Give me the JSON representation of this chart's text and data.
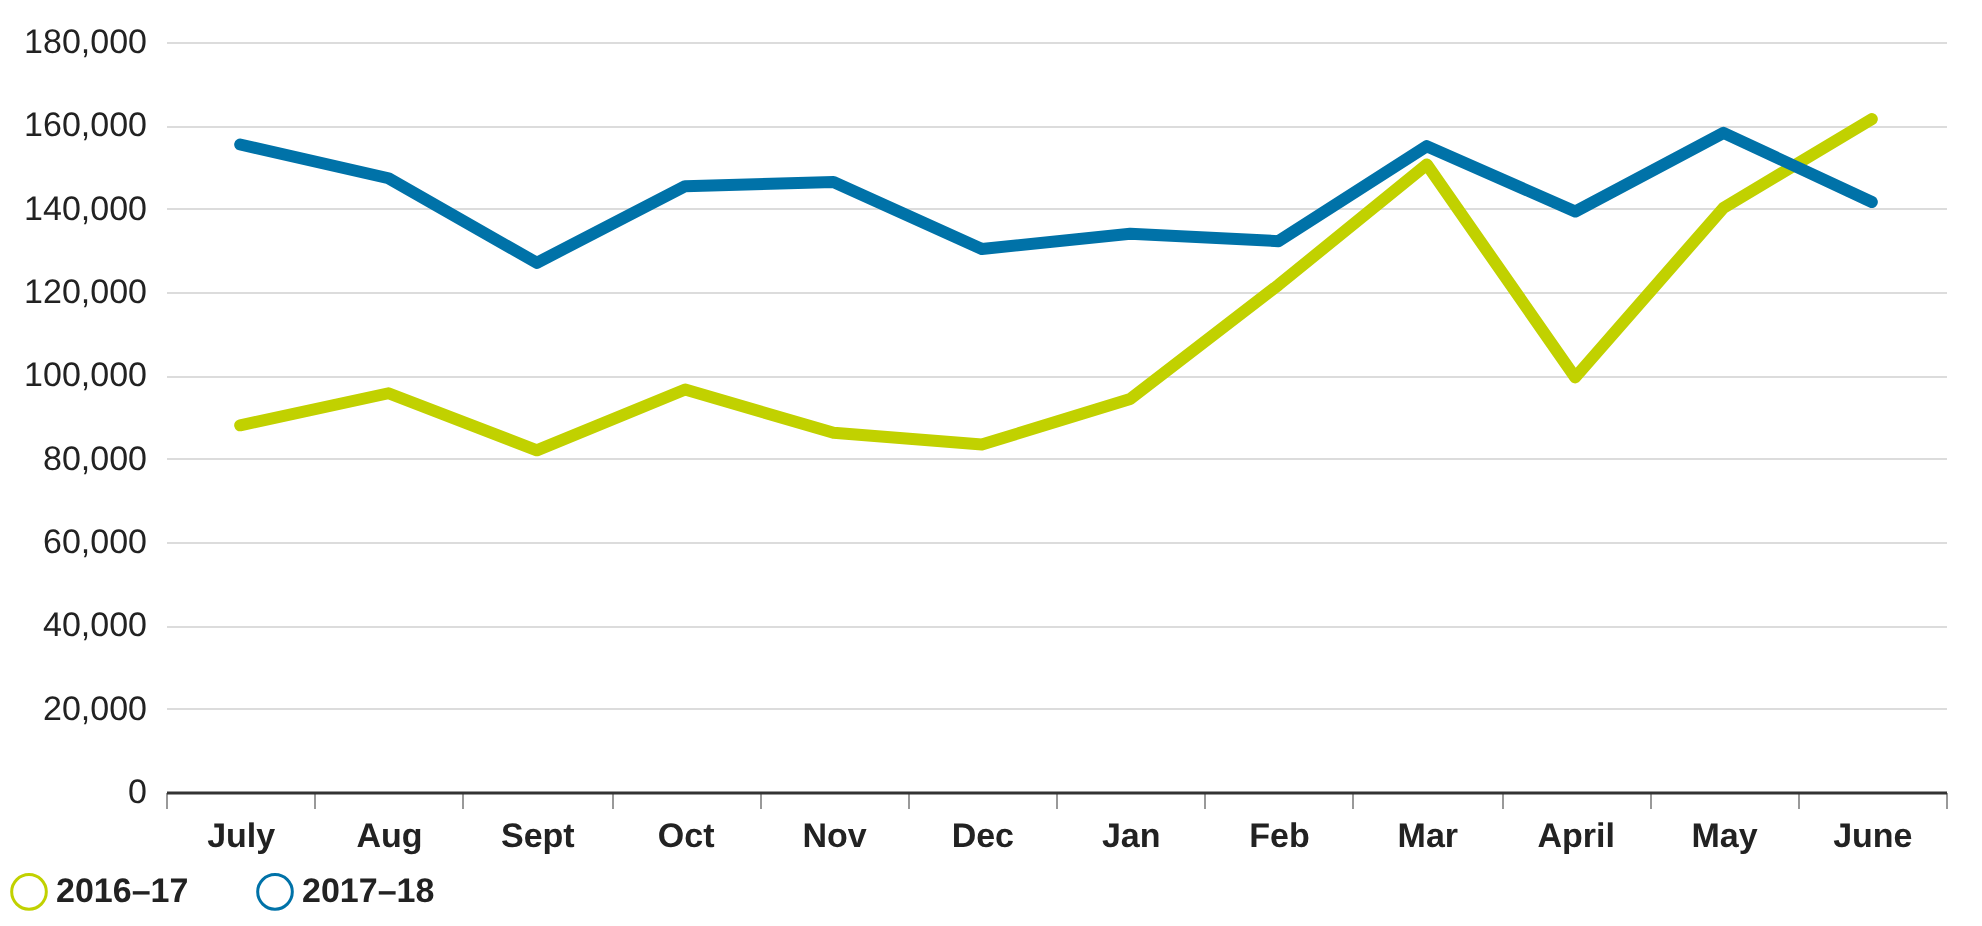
{
  "chart_data": {
    "type": "line",
    "categories": [
      "July",
      "Aug",
      "Sept",
      "Oct",
      "Nov",
      "Dec",
      "Jan",
      "Feb",
      "Mar",
      "April",
      "May",
      "June"
    ],
    "series": [
      {
        "name": "2016–17",
        "color": "#c1d100",
        "values": [
          88000,
          95700,
          82000,
          96600,
          86200,
          83400,
          94300,
          121700,
          150600,
          99500,
          140200,
          161500
        ]
      },
      {
        "name": "2017–18",
        "color": "#0072a8",
        "values": [
          155400,
          147300,
          127000,
          145400,
          146400,
          130300,
          134000,
          132200,
          155000,
          139300,
          158200,
          141600
        ]
      }
    ],
    "ylim": [
      0,
      180000
    ],
    "yticks": [
      0,
      {
        "value": 20000,
        "label": "20,000"
      },
      {
        "value": 40000,
        "label": "40,000"
      },
      {
        "value": 60000,
        "label": "60,000"
      },
      {
        "value": 80000,
        "label": "80,000"
      },
      {
        "value": 100000,
        "label": "100,000"
      },
      {
        "value": 120000,
        "label": "120,000"
      },
      {
        "value": 140000,
        "label": "140,000"
      },
      {
        "value": 160000,
        "label": "160,000"
      },
      {
        "value": 180000,
        "label": "180,000"
      }
    ],
    "grid": "y",
    "legend": "bottom left",
    "marker": "none",
    "line_style": "solid"
  }
}
